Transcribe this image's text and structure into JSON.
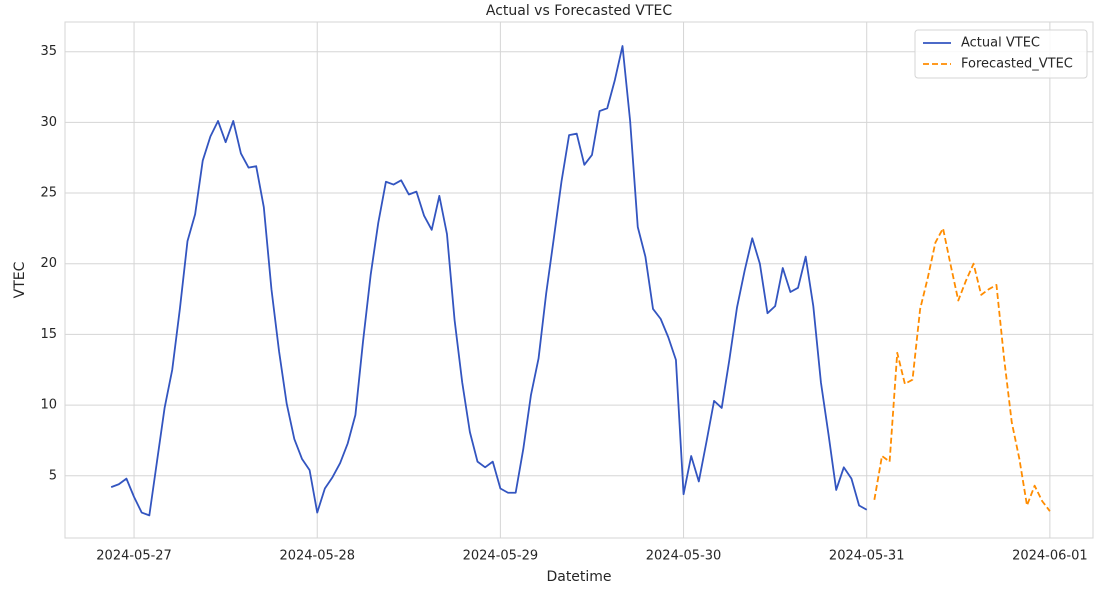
{
  "chart_data": {
    "type": "line",
    "title": "Actual vs Forecasted VTEC",
    "x_label": "Datetime",
    "y_label": "VTEC",
    "x": [
      "2024-05-26 21:00",
      "2024-05-26 22:00",
      "2024-05-26 23:00",
      "2024-05-27 00:00",
      "2024-05-27 01:00",
      "2024-05-27 02:00",
      "2024-05-27 03:00",
      "2024-05-27 04:00",
      "2024-05-27 05:00",
      "2024-05-27 06:00",
      "2024-05-27 07:00",
      "2024-05-27 08:00",
      "2024-05-27 09:00",
      "2024-05-27 10:00",
      "2024-05-27 11:00",
      "2024-05-27 12:00",
      "2024-05-27 13:00",
      "2024-05-27 14:00",
      "2024-05-27 15:00",
      "2024-05-27 16:00",
      "2024-05-27 17:00",
      "2024-05-27 18:00",
      "2024-05-27 19:00",
      "2024-05-27 20:00",
      "2024-05-27 21:00",
      "2024-05-27 22:00",
      "2024-05-27 23:00",
      "2024-05-28 00:00",
      "2024-05-28 01:00",
      "2024-05-28 02:00",
      "2024-05-28 03:00",
      "2024-05-28 04:00",
      "2024-05-28 05:00",
      "2024-05-28 06:00",
      "2024-05-28 07:00",
      "2024-05-28 08:00",
      "2024-05-28 09:00",
      "2024-05-28 10:00",
      "2024-05-28 11:00",
      "2024-05-28 12:00",
      "2024-05-28 13:00",
      "2024-05-28 14:00",
      "2024-05-28 15:00",
      "2024-05-28 16:00",
      "2024-05-28 17:00",
      "2024-05-28 18:00",
      "2024-05-28 19:00",
      "2024-05-28 20:00",
      "2024-05-28 21:00",
      "2024-05-28 22:00",
      "2024-05-28 23:00",
      "2024-05-29 00:00",
      "2024-05-29 01:00",
      "2024-05-29 02:00",
      "2024-05-29 03:00",
      "2024-05-29 04:00",
      "2024-05-29 05:00",
      "2024-05-29 06:00",
      "2024-05-29 07:00",
      "2024-05-29 08:00",
      "2024-05-29 09:00",
      "2024-05-29 10:00",
      "2024-05-29 11:00",
      "2024-05-29 12:00",
      "2024-05-29 13:00",
      "2024-05-29 14:00",
      "2024-05-29 15:00",
      "2024-05-29 16:00",
      "2024-05-29 17:00",
      "2024-05-29 18:00",
      "2024-05-29 19:00",
      "2024-05-29 20:00",
      "2024-05-29 21:00",
      "2024-05-29 22:00",
      "2024-05-29 23:00",
      "2024-05-30 00:00",
      "2024-05-30 01:00",
      "2024-05-30 02:00",
      "2024-05-30 03:00",
      "2024-05-30 04:00",
      "2024-05-30 05:00",
      "2024-05-30 06:00",
      "2024-05-30 07:00",
      "2024-05-30 08:00",
      "2024-05-30 09:00",
      "2024-05-30 10:00",
      "2024-05-30 11:00",
      "2024-05-30 12:00",
      "2024-05-30 13:00",
      "2024-05-30 14:00",
      "2024-05-30 15:00",
      "2024-05-30 16:00",
      "2024-05-30 17:00",
      "2024-05-30 18:00",
      "2024-05-30 19:00",
      "2024-05-30 20:00",
      "2024-05-30 21:00",
      "2024-05-30 22:00",
      "2024-05-30 23:00",
      "2024-05-31 00:00",
      "2024-05-31 01:00",
      "2024-05-31 02:00",
      "2024-05-31 03:00",
      "2024-05-31 04:00",
      "2024-05-31 05:00",
      "2024-05-31 06:00",
      "2024-05-31 07:00",
      "2024-05-31 08:00",
      "2024-05-31 09:00",
      "2024-05-31 10:00",
      "2024-05-31 11:00",
      "2024-05-31 12:00",
      "2024-05-31 13:00",
      "2024-05-31 14:00",
      "2024-05-31 15:00",
      "2024-05-31 16:00",
      "2024-05-31 17:00",
      "2024-05-31 18:00",
      "2024-05-31 19:00",
      "2024-05-31 20:00",
      "2024-05-31 21:00",
      "2024-05-31 22:00",
      "2024-05-31 23:00",
      "2024-06-01 00:00"
    ],
    "series": [
      {
        "name": "Actual VTEC",
        "color": "#3355c0",
        "dash": "solid",
        "values": [
          4.2,
          4.4,
          4.8,
          3.5,
          2.4,
          2.2,
          6.0,
          9.8,
          12.5,
          16.8,
          21.6,
          23.5,
          27.3,
          29.0,
          30.1,
          28.6,
          30.1,
          27.8,
          26.8,
          26.9,
          24.0,
          18.2,
          13.8,
          10.1,
          7.6,
          6.2,
          5.4,
          2.4,
          4.1,
          4.9,
          5.9,
          7.3,
          9.3,
          14.5,
          19.2,
          22.9,
          25.8,
          25.6,
          25.9,
          24.9,
          25.1,
          23.4,
          22.4,
          24.8,
          22.1,
          16.0,
          11.6,
          8.1,
          6.0,
          5.6,
          6.0,
          4.1,
          3.8,
          3.8,
          6.9,
          10.7,
          13.3,
          17.9,
          21.8,
          25.8,
          29.1,
          29.2,
          27.0,
          27.7,
          30.8,
          31.0,
          33.0,
          35.4,
          30.1,
          22.6,
          20.5,
          16.8,
          16.1,
          14.8,
          13.2,
          3.7,
          6.4,
          4.6,
          7.4,
          10.3,
          9.8,
          13.2,
          16.9,
          19.5,
          21.8,
          20.0,
          16.5,
          17.0,
          19.7,
          18.0,
          18.3,
          20.5,
          17.0,
          11.6,
          7.9,
          4.0,
          5.6,
          4.8,
          2.9,
          2.6,
          null,
          null,
          null,
          null,
          null,
          null,
          null,
          null,
          null,
          null,
          null,
          null,
          null,
          null,
          null,
          null,
          null,
          null,
          null,
          null,
          null,
          null,
          null,
          null
        ]
      },
      {
        "name": "Forecasted_VTEC",
        "color": "#ff8c00",
        "dash": "dashed",
        "values": [
          null,
          null,
          null,
          null,
          null,
          null,
          null,
          null,
          null,
          null,
          null,
          null,
          null,
          null,
          null,
          null,
          null,
          null,
          null,
          null,
          null,
          null,
          null,
          null,
          null,
          null,
          null,
          null,
          null,
          null,
          null,
          null,
          null,
          null,
          null,
          null,
          null,
          null,
          null,
          null,
          null,
          null,
          null,
          null,
          null,
          null,
          null,
          null,
          null,
          null,
          null,
          null,
          null,
          null,
          null,
          null,
          null,
          null,
          null,
          null,
          null,
          null,
          null,
          null,
          null,
          null,
          null,
          null,
          null,
          null,
          null,
          null,
          null,
          null,
          null,
          null,
          null,
          null,
          null,
          null,
          null,
          null,
          null,
          null,
          null,
          null,
          null,
          null,
          null,
          null,
          null,
          null,
          null,
          null,
          null,
          null,
          null,
          null,
          null,
          null,
          3.3,
          6.4,
          6.0,
          13.7,
          11.5,
          11.8,
          16.8,
          19.0,
          21.5,
          22.5,
          19.9,
          17.4,
          18.8,
          20.0,
          17.8,
          18.2,
          18.5,
          13.3,
          8.8,
          6.2,
          2.9,
          4.3,
          3.2,
          2.5
        ]
      }
    ],
    "xlim": [
      "2024-05-26 14:57",
      "2024-06-01 05:39"
    ],
    "xticks": [
      "2024-05-27",
      "2024-05-28",
      "2024-05-29",
      "2024-05-30",
      "2024-05-31",
      "2024-06-01"
    ],
    "ylim": [
      0.6,
      37.1
    ],
    "yticks": [
      5,
      10,
      15,
      20,
      25,
      30,
      35
    ],
    "grid": true,
    "legend": "upper right"
  }
}
